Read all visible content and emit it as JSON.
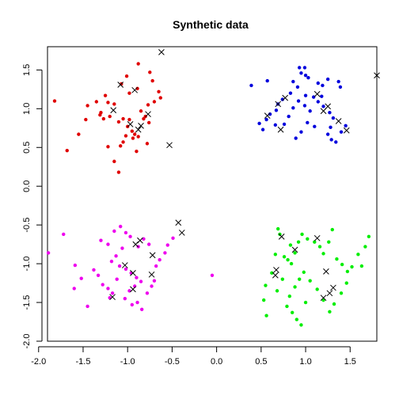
{
  "chart_data": {
    "type": "scatter",
    "title": "Synthetic data",
    "xlabel": "",
    "ylabel": "",
    "xlim": [
      -1.9,
      1.8
    ],
    "ylim": [
      -2.0,
      1.8
    ],
    "xticks": [
      -2.0,
      -1.5,
      -1.0,
      -0.5,
      0.0,
      0.5,
      1.0,
      1.5
    ],
    "yticks": [
      -2.0,
      -1.5,
      -1.0,
      -0.5,
      0.0,
      0.5,
      1.0,
      1.5
    ],
    "xtick_labels": [
      "-2.0",
      "-1.5",
      "-1.0",
      "-0.5",
      "0.0",
      "0.5",
      "1.0",
      "1.5"
    ],
    "ytick_labels": [
      "-2.0",
      "-1.5",
      "-1.0",
      "-0.5",
      "0.0",
      "0.5",
      "1.0",
      "1.5"
    ],
    "grid": false,
    "legend": "none",
    "series": [
      {
        "color": "#e00000",
        "marker": "dot",
        "points": [
          [
            -1.82,
            1.1
          ],
          [
            -1.07,
            1.32
          ],
          [
            -1.01,
            1.42
          ],
          [
            -0.88,
            1.58
          ],
          [
            -0.75,
            1.47
          ],
          [
            -0.72,
            1.36
          ],
          [
            -0.7,
            1.09
          ],
          [
            -0.63,
            1.14
          ],
          [
            -0.65,
            1.22
          ],
          [
            -1.25,
            1.17
          ],
          [
            -1.22,
            1.08
          ],
          [
            -1.15,
            1.06
          ],
          [
            -1.35,
            1.09
          ],
          [
            -1.47,
            0.86
          ],
          [
            -1.55,
            0.67
          ],
          [
            -1.68,
            0.46
          ],
          [
            -1.3,
            0.95
          ],
          [
            -1.27,
            0.87
          ],
          [
            -1.31,
            0.92
          ],
          [
            -1.2,
            0.9
          ],
          [
            -1.1,
            0.83
          ],
          [
            -1.05,
            0.87
          ],
          [
            -0.98,
            0.86
          ],
          [
            -1.0,
            0.77
          ],
          [
            -0.95,
            0.71
          ],
          [
            -0.92,
            0.67
          ],
          [
            -0.88,
            0.64
          ],
          [
            -0.94,
            0.62
          ],
          [
            -0.85,
            0.97
          ],
          [
            -0.8,
            0.9
          ],
          [
            -0.76,
            0.82
          ],
          [
            -0.82,
            0.87
          ],
          [
            -1.05,
            0.57
          ],
          [
            -1.08,
            0.52
          ],
          [
            -1.1,
            0.18
          ],
          [
            -1.15,
            0.32
          ],
          [
            -1.22,
            0.51
          ],
          [
            -0.98,
            1.2
          ],
          [
            -0.9,
            0.45
          ],
          [
            -1.02,
            0.65
          ],
          [
            -0.78,
            0.55
          ],
          [
            -1.45,
            1.04
          ],
          [
            -0.89,
            1.26
          ],
          [
            -0.77,
            1.05
          ]
        ]
      },
      {
        "color": "#0000dd",
        "marker": "dot",
        "points": [
          [
            0.39,
            1.3
          ],
          [
            0.57,
            1.36
          ],
          [
            0.93,
            1.53
          ],
          [
            0.99,
            1.53
          ],
          [
            0.95,
            1.46
          ],
          [
            1.0,
            1.43
          ],
          [
            1.03,
            1.4
          ],
          [
            1.14,
            1.33
          ],
          [
            1.19,
            1.3
          ],
          [
            1.25,
            1.38
          ],
          [
            1.37,
            1.35
          ],
          [
            1.39,
            1.28
          ],
          [
            0.86,
            1.35
          ],
          [
            0.91,
            1.28
          ],
          [
            0.83,
            1.2
          ],
          [
            0.74,
            1.12
          ],
          [
            0.69,
            1.06
          ],
          [
            0.67,
            0.98
          ],
          [
            0.6,
            0.93
          ],
          [
            0.56,
            0.86
          ],
          [
            0.48,
            0.81
          ],
          [
            0.52,
            0.73
          ],
          [
            0.66,
            0.79
          ],
          [
            0.76,
            0.8
          ],
          [
            0.81,
            0.9
          ],
          [
            0.86,
            1.01
          ],
          [
            0.92,
            1.1
          ],
          [
            1.0,
            1.17
          ],
          [
            1.09,
            1.15
          ],
          [
            1.14,
            1.09
          ],
          [
            1.2,
            1.03
          ],
          [
            1.27,
            0.95
          ],
          [
            1.31,
            0.88
          ],
          [
            1.28,
            0.76
          ],
          [
            1.25,
            0.67
          ],
          [
            1.29,
            0.6
          ],
          [
            1.34,
            0.57
          ],
          [
            1.4,
            0.7
          ],
          [
            1.45,
            0.78
          ],
          [
            1.1,
            0.77
          ],
          [
            1.02,
            0.82
          ],
          [
            0.95,
            0.7
          ],
          [
            0.89,
            0.62
          ],
          [
            1.05,
            0.97
          ],
          [
            0.99,
            1.04
          ],
          [
            1.18,
            1.16
          ]
        ]
      },
      {
        "color": "#ee00ee",
        "marker": "dot",
        "points": [
          [
            -1.72,
            -0.62
          ],
          [
            -1.89,
            -0.86
          ],
          [
            -1.59,
            -1.02
          ],
          [
            -1.52,
            -1.19
          ],
          [
            -1.6,
            -1.32
          ],
          [
            -1.45,
            -1.55
          ],
          [
            -1.38,
            -1.08
          ],
          [
            -1.33,
            -1.15
          ],
          [
            -1.28,
            -1.27
          ],
          [
            -1.22,
            -1.32
          ],
          [
            -1.17,
            -1.38
          ],
          [
            -1.2,
            -1.44
          ],
          [
            -1.3,
            -0.7
          ],
          [
            -1.22,
            -0.75
          ],
          [
            -1.15,
            -0.58
          ],
          [
            -1.08,
            -0.52
          ],
          [
            -1.02,
            -0.6
          ],
          [
            -0.97,
            -0.65
          ],
          [
            -1.06,
            -0.8
          ],
          [
            -1.13,
            -0.9
          ],
          [
            -1.18,
            -0.97
          ],
          [
            -1.09,
            -1.03
          ],
          [
            -1.02,
            -1.07
          ],
          [
            -0.96,
            -1.12
          ],
          [
            -0.9,
            -1.18
          ],
          [
            -0.85,
            -1.23
          ],
          [
            -0.92,
            -1.29
          ],
          [
            -0.98,
            -1.35
          ],
          [
            -1.03,
            -1.45
          ],
          [
            -0.95,
            -1.53
          ],
          [
            -0.89,
            -1.5
          ],
          [
            -0.84,
            -1.59
          ],
          [
            -0.78,
            -1.38
          ],
          [
            -0.73,
            -1.29
          ],
          [
            -0.7,
            -1.22
          ],
          [
            -0.68,
            -1.03
          ],
          [
            -0.64,
            -0.95
          ],
          [
            -0.58,
            -0.86
          ],
          [
            -0.55,
            -0.76
          ],
          [
            -0.49,
            -0.67
          ],
          [
            -0.76,
            -0.75
          ],
          [
            -0.82,
            -0.68
          ],
          [
            -0.88,
            -0.78
          ],
          [
            -1.12,
            -1.2
          ],
          [
            -0.05,
            -1.15
          ]
        ]
      },
      {
        "color": "#00ee00",
        "marker": "dot",
        "points": [
          [
            0.55,
            -1.28
          ],
          [
            0.53,
            -1.47
          ],
          [
            0.56,
            -1.67
          ],
          [
            0.62,
            -1.12
          ],
          [
            0.66,
            -0.88
          ],
          [
            0.69,
            -0.55
          ],
          [
            0.71,
            -0.62
          ],
          [
            0.76,
            -0.91
          ],
          [
            0.8,
            -0.95
          ],
          [
            0.84,
            -1.0
          ],
          [
            0.88,
            -0.86
          ],
          [
            0.83,
            -0.76
          ],
          [
            0.92,
            -0.72
          ],
          [
            0.96,
            -0.62
          ],
          [
            1.02,
            -0.68
          ],
          [
            1.1,
            -0.72
          ],
          [
            1.16,
            -0.78
          ],
          [
            1.2,
            -0.87
          ],
          [
            1.26,
            -0.72
          ],
          [
            1.3,
            -0.56
          ],
          [
            1.35,
            -0.94
          ],
          [
            1.41,
            -1.01
          ],
          [
            1.47,
            -1.1
          ],
          [
            1.52,
            -1.04
          ],
          [
            1.59,
            -0.88
          ],
          [
            1.67,
            -0.78
          ],
          [
            1.71,
            -0.65
          ],
          [
            1.63,
            -1.03
          ],
          [
            1.46,
            -1.25
          ],
          [
            1.4,
            -1.38
          ],
          [
            1.32,
            -1.52
          ],
          [
            1.27,
            -1.62
          ],
          [
            1.2,
            -1.47
          ],
          [
            1.13,
            -1.33
          ],
          [
            1.05,
            -1.22
          ],
          [
            0.98,
            -1.11
          ],
          [
            0.93,
            -1.2
          ],
          [
            0.88,
            -1.3
          ],
          [
            0.82,
            -1.42
          ],
          [
            0.79,
            -1.55
          ],
          [
            0.85,
            -1.63
          ],
          [
            0.9,
            -1.72
          ],
          [
            0.95,
            -1.79
          ],
          [
            1.0,
            -1.5
          ],
          [
            0.68,
            -1.35
          ],
          [
            0.74,
            -1.2
          ]
        ]
      },
      {
        "color": "#000000",
        "marker": "x",
        "points": [
          [
            -0.62,
            1.73
          ],
          [
            -1.08,
            1.31
          ],
          [
            -0.92,
            1.24
          ],
          [
            -1.16,
            0.98
          ],
          [
            -0.97,
            0.8
          ],
          [
            -0.85,
            0.78
          ],
          [
            -0.88,
            0.73
          ],
          [
            -0.77,
            0.93
          ],
          [
            -0.53,
            0.53
          ],
          [
            0.57,
            0.91
          ],
          [
            0.69,
            1.06
          ],
          [
            0.77,
            1.14
          ],
          [
            0.72,
            0.73
          ],
          [
            1.13,
            1.19
          ],
          [
            1.2,
            0.97
          ],
          [
            1.25,
            1.03
          ],
          [
            1.37,
            0.84
          ],
          [
            1.46,
            0.72
          ],
          [
            1.8,
            1.43
          ],
          [
            -0.43,
            -0.47
          ],
          [
            -0.39,
            -0.6
          ],
          [
            -0.86,
            -0.7
          ],
          [
            -0.91,
            -0.75
          ],
          [
            -0.72,
            -0.89
          ],
          [
            -0.94,
            -1.12
          ],
          [
            -0.73,
            -1.14
          ],
          [
            -1.03,
            -1.02
          ],
          [
            -0.94,
            -1.33
          ],
          [
            -1.17,
            -1.43
          ],
          [
            0.73,
            -0.65
          ],
          [
            0.67,
            -1.08
          ],
          [
            0.88,
            -0.82
          ],
          [
            1.13,
            -0.67
          ],
          [
            1.23,
            -1.1
          ],
          [
            1.27,
            -1.38
          ],
          [
            1.31,
            -1.31
          ],
          [
            1.2,
            -1.44
          ],
          [
            0.66,
            -1.15
          ]
        ]
      }
    ]
  }
}
